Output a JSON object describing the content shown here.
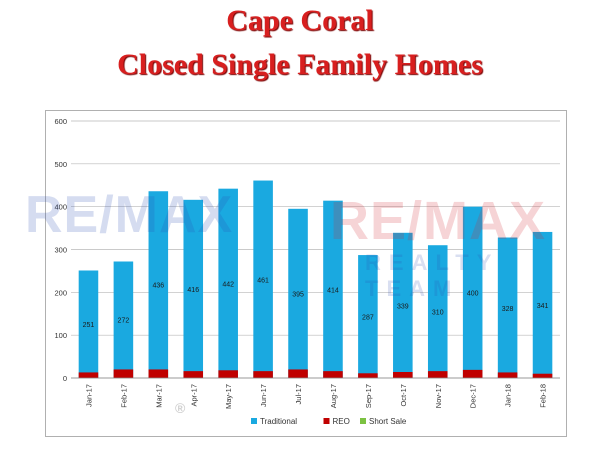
{
  "title_line1": "Cape Coral",
  "title_line2": "Closed Single Family Homes",
  "watermark": {
    "brand": "RE/MAX",
    "team_text": "REALTY TEAM",
    "registered": "®"
  },
  "colors": {
    "title": "#d81f1f",
    "traditional": "#1aa9e0",
    "reo": "#c00000",
    "short_sale": "#7cc242"
  },
  "chart_data": {
    "type": "bar",
    "categories": [
      "Jan-17",
      "Feb-17",
      "Mar-17",
      "Apr-17",
      "May-17",
      "Jun-17",
      "Jul-17",
      "Aug-17",
      "Sep-17",
      "Oct-17",
      "Nov-17",
      "Dec-17",
      "Jan-18",
      "Feb-18"
    ],
    "series": [
      {
        "name": "Traditional",
        "values": [
          251,
          272,
          436,
          416,
          442,
          461,
          395,
          414,
          287,
          339,
          310,
          400,
          328,
          341
        ]
      },
      {
        "name": "REO",
        "values": [
          13,
          20,
          20,
          16,
          18,
          16,
          20,
          16,
          11,
          14,
          16,
          19,
          13,
          10
        ]
      },
      {
        "name": "Short Sale",
        "values": [
          0,
          0,
          0,
          0,
          0,
          0,
          0,
          0,
          0,
          0,
          0,
          0,
          0,
          0
        ]
      }
    ],
    "stacked": true,
    "ylim": [
      0,
      600
    ],
    "yticks": [
      0,
      100,
      200,
      300,
      400,
      500,
      600
    ],
    "grid": true,
    "legend_position": "bottom",
    "show_traditional_labels": true
  }
}
